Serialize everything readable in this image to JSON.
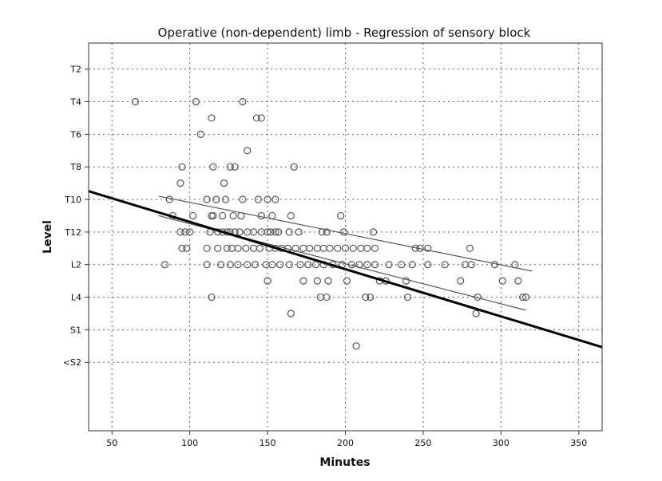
{
  "chart_data": {
    "type": "scatter",
    "title": "Operative (non-dependent) limb - Regression of sensory block",
    "xlabel": "Minutes",
    "ylabel": "Level",
    "xlim": [
      35,
      365
    ],
    "ylim": [
      -11.1,
      0.8
    ],
    "x_ticks": [
      50,
      100,
      150,
      200,
      250,
      300,
      350
    ],
    "y_ticks": [
      {
        "label": "T2",
        "value": 0
      },
      {
        "label": "T4",
        "value": -1
      },
      {
        "label": "T6",
        "value": -2
      },
      {
        "label": "T8",
        "value": -3
      },
      {
        "label": "T10",
        "value": -4
      },
      {
        "label": "T12",
        "value": -5
      },
      {
        "label": "L2",
        "value": -6
      },
      {
        "label": "L4",
        "value": -7
      },
      {
        "label": "S1",
        "value": -8
      },
      {
        "label": "<S2",
        "value": -9
      }
    ],
    "grid": true,
    "points": [
      [
        65,
        -1
      ],
      [
        104,
        -1
      ],
      [
        134,
        -1
      ],
      [
        114,
        -1.5
      ],
      [
        143,
        -1.5
      ],
      [
        146,
        -1.5
      ],
      [
        107,
        -2
      ],
      [
        137,
        -2.5
      ],
      [
        95,
        -3
      ],
      [
        115,
        -3
      ],
      [
        126,
        -3
      ],
      [
        129,
        -3
      ],
      [
        167,
        -3
      ],
      [
        94,
        -3.5
      ],
      [
        122,
        -3.5
      ],
      [
        87,
        -4
      ],
      [
        111,
        -4
      ],
      [
        117,
        -4
      ],
      [
        123,
        -4
      ],
      [
        134,
        -4
      ],
      [
        144,
        -4
      ],
      [
        150,
        -4
      ],
      [
        155,
        -4
      ],
      [
        89,
        -4.5
      ],
      [
        102,
        -4.5
      ],
      [
        114,
        -4.5
      ],
      [
        115,
        -4.5
      ],
      [
        121,
        -4.5
      ],
      [
        128,
        -4.5
      ],
      [
        133,
        -4.5
      ],
      [
        146,
        -4.5
      ],
      [
        153,
        -4.5
      ],
      [
        165,
        -4.5
      ],
      [
        197,
        -4.5
      ],
      [
        94,
        -5
      ],
      [
        97,
        -5
      ],
      [
        100,
        -5
      ],
      [
        113,
        -5
      ],
      [
        118,
        -5
      ],
      [
        121,
        -5
      ],
      [
        124,
        -5
      ],
      [
        126,
        -5
      ],
      [
        129,
        -5
      ],
      [
        132,
        -5
      ],
      [
        137,
        -5
      ],
      [
        141,
        -5
      ],
      [
        146,
        -5
      ],
      [
        150,
        -5
      ],
      [
        152,
        -5
      ],
      [
        155,
        -5
      ],
      [
        157,
        -5
      ],
      [
        164,
        -5
      ],
      [
        170,
        -5
      ],
      [
        185,
        -5
      ],
      [
        188,
        -5
      ],
      [
        199,
        -5
      ],
      [
        218,
        -5
      ],
      [
        95,
        -5.5
      ],
      [
        98,
        -5.5
      ],
      [
        111,
        -5.5
      ],
      [
        118,
        -5.5
      ],
      [
        124,
        -5.5
      ],
      [
        127,
        -5.5
      ],
      [
        131,
        -5.5
      ],
      [
        136,
        -5.5
      ],
      [
        141,
        -5.5
      ],
      [
        145,
        -5.5
      ],
      [
        151,
        -5.5
      ],
      [
        155,
        -5.5
      ],
      [
        159,
        -5.5
      ],
      [
        163,
        -5.5
      ],
      [
        168,
        -5.5
      ],
      [
        173,
        -5.5
      ],
      [
        177,
        -5.5
      ],
      [
        182,
        -5.5
      ],
      [
        186,
        -5.5
      ],
      [
        190,
        -5.5
      ],
      [
        195,
        -5.5
      ],
      [
        200,
        -5.5
      ],
      [
        205,
        -5.5
      ],
      [
        210,
        -5.5
      ],
      [
        214,
        -5.5
      ],
      [
        219,
        -5.5
      ],
      [
        245,
        -5.5
      ],
      [
        248,
        -5.5
      ],
      [
        253,
        -5.5
      ],
      [
        280,
        -5.5
      ],
      [
        84,
        -6
      ],
      [
        111,
        -6
      ],
      [
        120,
        -6
      ],
      [
        126,
        -6
      ],
      [
        131,
        -6
      ],
      [
        137,
        -6
      ],
      [
        142,
        -6
      ],
      [
        149,
        -6
      ],
      [
        153,
        -6
      ],
      [
        158,
        -6
      ],
      [
        164,
        -6
      ],
      [
        171,
        -6
      ],
      [
        176,
        -6
      ],
      [
        181,
        -6
      ],
      [
        186,
        -6
      ],
      [
        192,
        -6
      ],
      [
        198,
        -6
      ],
      [
        204,
        -6
      ],
      [
        209,
        -6
      ],
      [
        214,
        -6
      ],
      [
        219,
        -6
      ],
      [
        228,
        -6
      ],
      [
        236,
        -6
      ],
      [
        243,
        -6
      ],
      [
        253,
        -6
      ],
      [
        264,
        -6
      ],
      [
        277,
        -6
      ],
      [
        281,
        -6
      ],
      [
        296,
        -6
      ],
      [
        309,
        -6
      ],
      [
        150,
        -6.5
      ],
      [
        173,
        -6.5
      ],
      [
        182,
        -6.5
      ],
      [
        189,
        -6.5
      ],
      [
        201,
        -6.5
      ],
      [
        222,
        -6.5
      ],
      [
        226,
        -6.5
      ],
      [
        239,
        -6.5
      ],
      [
        274,
        -6.5
      ],
      [
        301,
        -6.5
      ],
      [
        311,
        -6.5
      ],
      [
        114,
        -7
      ],
      [
        184,
        -7
      ],
      [
        188,
        -7
      ],
      [
        213,
        -7
      ],
      [
        216,
        -7
      ],
      [
        240,
        -7
      ],
      [
        285,
        -7
      ],
      [
        314,
        -7
      ],
      [
        316,
        -7
      ],
      [
        165,
        -7.5
      ],
      [
        284,
        -7.5
      ],
      [
        207,
        -8.5
      ]
    ],
    "regression": {
      "intercept": -3.24,
      "slope": -0.0145,
      "line_color": "#000000"
    },
    "confidence_band": {
      "upper": [
        [
          80,
          -3.9
        ],
        [
          320,
          -6.2
        ]
      ],
      "lower": [
        [
          80,
          -4.5
        ],
        [
          316,
          -7.4
        ]
      ],
      "line_color": "#555555"
    },
    "marker_color": "#555555"
  }
}
